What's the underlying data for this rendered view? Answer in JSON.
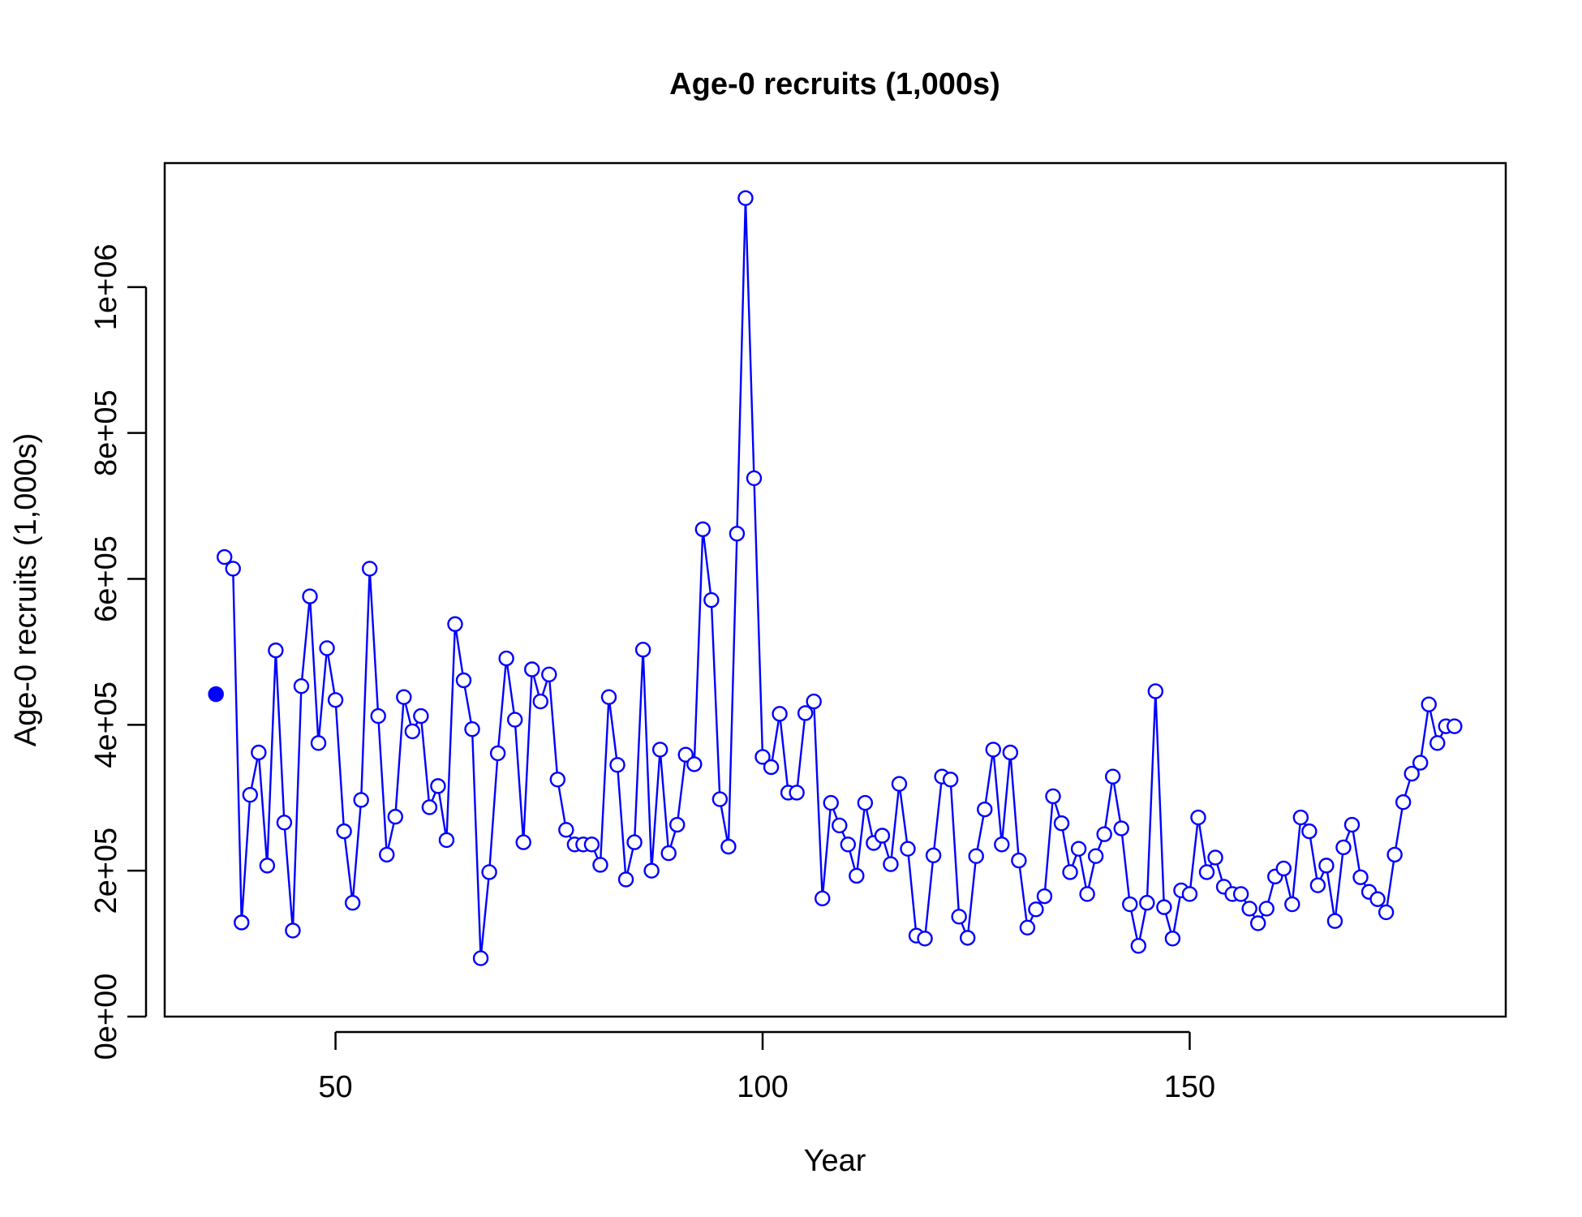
{
  "chart_data": {
    "type": "line",
    "title": "Age-0 recruits (1,000s)",
    "xlabel": "Year",
    "ylabel": "Age-0 recruits (1,000s)",
    "xlim": [
      30,
      187
    ],
    "ylim": [
      0,
      1170000
    ],
    "xticks": [
      50,
      100,
      150
    ],
    "yticks": [
      0,
      200000,
      400000,
      600000,
      800000,
      1000000
    ],
    "xtick_labels": [
      "50",
      "100",
      "150"
    ],
    "ytick_labels": [
      "0e+00",
      "2e+05",
      "4e+05",
      "6e+05",
      "8e+05",
      "1e+06"
    ],
    "line_color": "#0000ff",
    "first_point": {
      "x": 36,
      "y": 442000
    },
    "series": [
      {
        "x_start": 37,
        "values": [
          630000,
          614000,
          129000,
          304000,
          362000,
          207000,
          502000,
          266000,
          118000,
          453000,
          576000,
          375000,
          505000,
          434000,
          254000,
          156000,
          297000,
          614000,
          412000,
          222000,
          274000,
          438000,
          391000,
          412000,
          287000,
          316000,
          242000,
          538000,
          461000,
          394000,
          80000,
          198000,
          361000,
          491000,
          407000,
          239000,
          476000,
          432000,
          469000,
          325000,
          256000,
          236000,
          236000,
          236000,
          208000,
          438000,
          345000,
          188000,
          239000,
          503000,
          200000,
          366000,
          224000,
          263000,
          359000,
          346000,
          668000,
          571000,
          298000,
          233000,
          662000,
          1122000,
          738000,
          356000,
          342000,
          415000,
          307000,
          307000,
          416000,
          432000,
          162000,
          293000,
          262000,
          236000,
          193000,
          293000,
          238000,
          248000,
          209000,
          319000,
          230000,
          111000,
          107000,
          221000,
          329000,
          325000,
          137000,
          108000,
          220000,
          284000,
          366000,
          236000,
          362000,
          214000,
          122000,
          147000,
          165000,
          302000,
          265000,
          198000,
          230000,
          168000,
          220000,
          250000,
          329000,
          258000,
          154000,
          97000,
          156000,
          446000,
          150000,
          107000,
          173000,
          168000,
          273000,
          198000,
          218000,
          178000,
          168000,
          168000,
          148000,
          128000,
          148000,
          192000,
          203000,
          154000,
          273000,
          254000,
          180000,
          207000,
          131000,
          232000,
          263000,
          191000,
          171000,
          161000,
          143000,
          222000,
          294000,
          333000,
          348000,
          428000,
          375000,
          398000,
          398000
        ]
      }
    ]
  }
}
